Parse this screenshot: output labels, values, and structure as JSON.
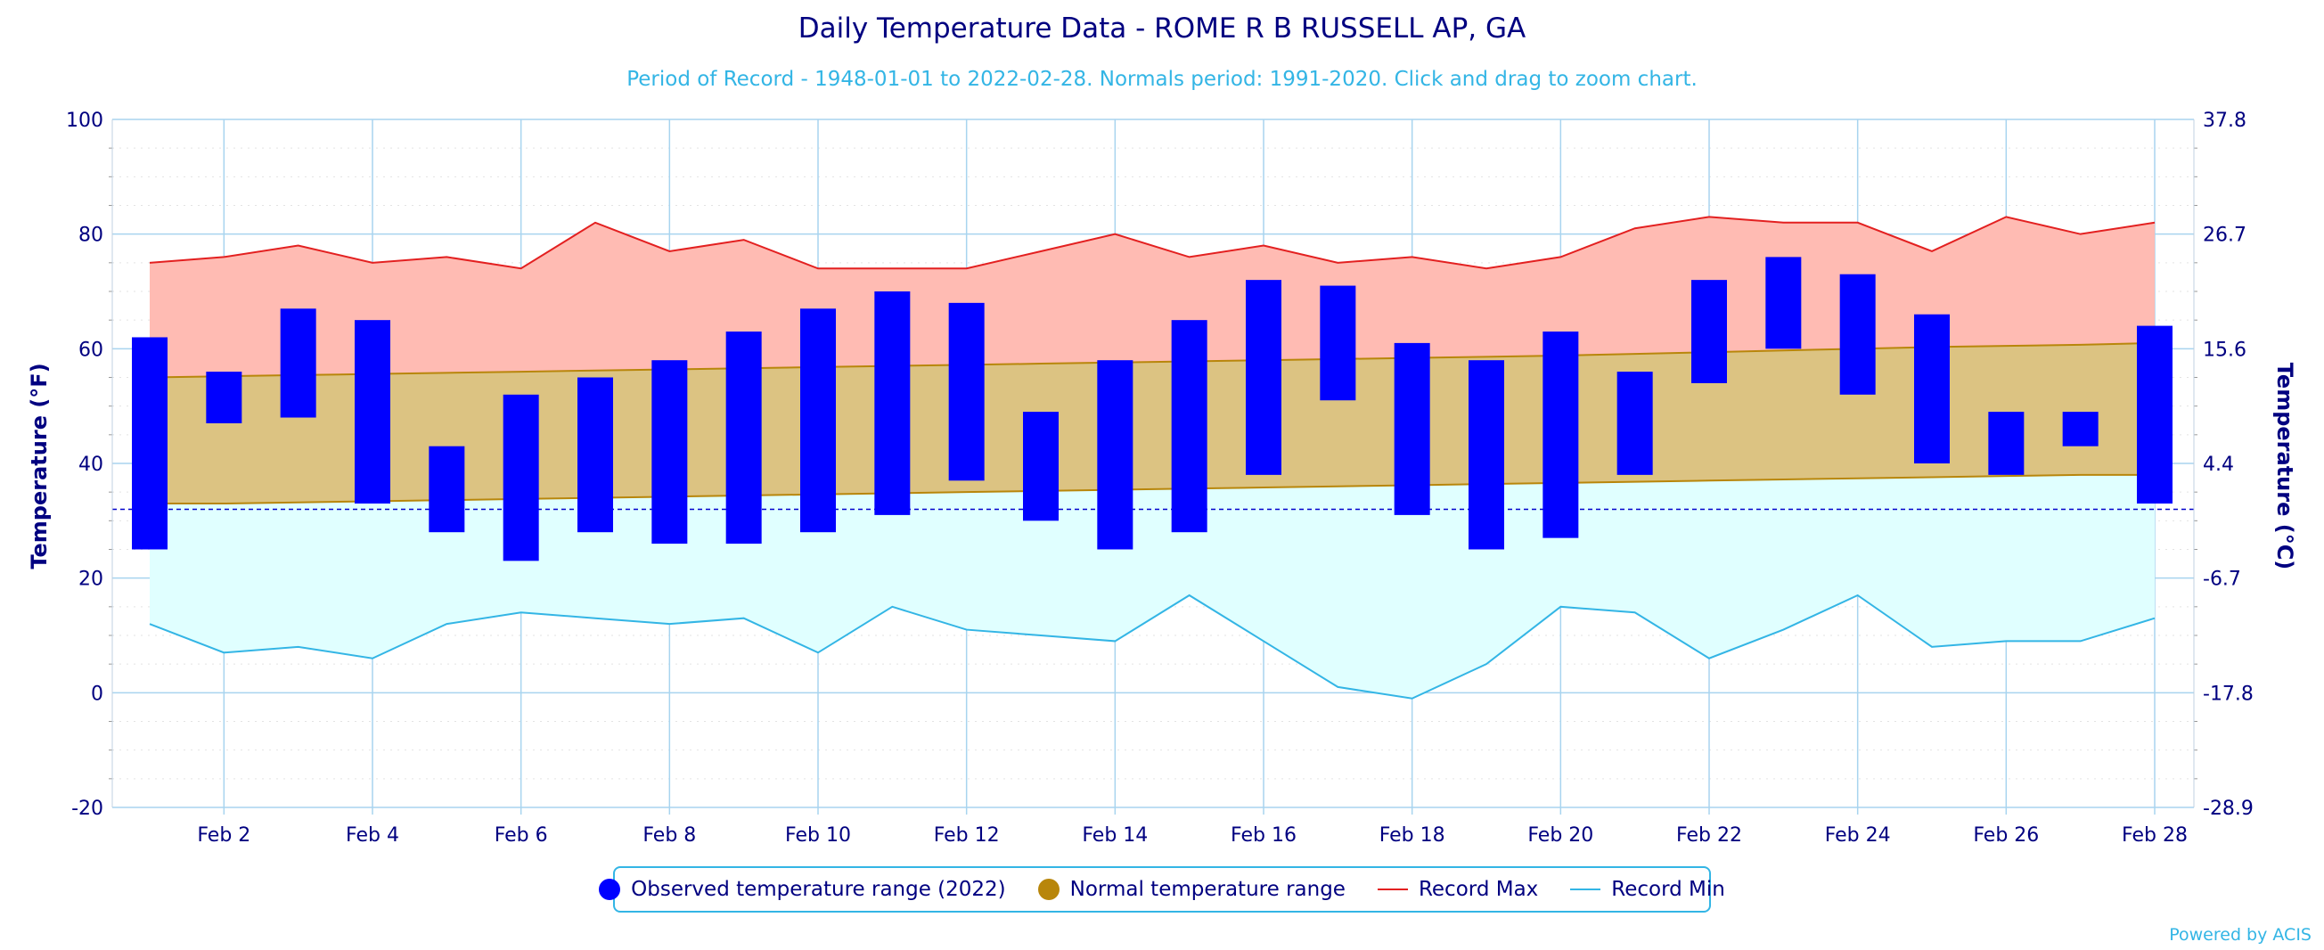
{
  "header": {
    "title": "Daily Temperature Data - ROME R B RUSSELL AP, GA",
    "subtitle": "Period of Record - 1948-01-01 to 2022-02-28. Normals period: 1991-2020. Click and drag to zoom chart."
  },
  "colors": {
    "title": "#000080",
    "subtitle": "#33b5e5",
    "observed": "#0000ff",
    "normal": "#b8860b",
    "normal_fill": "#dcc382",
    "record_max": "#e32020",
    "record_max_fill": "#ffbbb3",
    "record_min": "#33b5e5",
    "record_min_fill": "#e0ffff",
    "grid": "#a8d4ef",
    "freeze_line": "#0000cc"
  },
  "legend": {
    "observed": "Observed temperature range (2022)",
    "normal": "Normal temperature range",
    "record_max": "Record Max",
    "record_min": "Record Min"
  },
  "credit": "Powered by ACIS",
  "chart_data": {
    "type": "bar",
    "title": "Daily Temperature Data - ROME R B RUSSELL AP, GA",
    "subtitle": "Period of Record - 1948-01-01 to 2022-02-28. Normals period: 1991-2020. Click and drag to zoom chart.",
    "ylabel": "Temperature (°F)",
    "ylabel_right": "Temperature (°C)",
    "ylim": [
      -20,
      100
    ],
    "yticks": [
      -20,
      0,
      20,
      40,
      60,
      80,
      100
    ],
    "yticks_right": [
      "-28.9",
      "-17.8",
      "-6.7",
      "4.4",
      "15.6",
      "26.7",
      "37.8"
    ],
    "xlim": [
      1,
      28
    ],
    "x": [
      1,
      2,
      3,
      4,
      5,
      6,
      7,
      8,
      9,
      10,
      11,
      12,
      13,
      14,
      15,
      16,
      17,
      18,
      19,
      20,
      21,
      22,
      23,
      24,
      25,
      26,
      27,
      28
    ],
    "xticks": [
      2,
      4,
      6,
      8,
      10,
      12,
      14,
      16,
      18,
      20,
      22,
      24,
      26,
      28
    ],
    "xtick_labels": [
      "Feb 2",
      "Feb 4",
      "Feb 6",
      "Feb 8",
      "Feb 10",
      "Feb 12",
      "Feb 14",
      "Feb 16",
      "Feb 18",
      "Feb 20",
      "Feb 22",
      "Feb 24",
      "Feb 26",
      "Feb 28"
    ],
    "freezing_line": 32,
    "grid": true,
    "legend_position": "bottom",
    "series": [
      {
        "name": "Observed temperature range (2022)",
        "type": "range-bar",
        "low": [
          25,
          47,
          48,
          33,
          28,
          23,
          28,
          26,
          26,
          28,
          31,
          37,
          30,
          25,
          28,
          38,
          51,
          31,
          25,
          27,
          38,
          54,
          60,
          52,
          40,
          38,
          43,
          33
        ],
        "high": [
          62,
          56,
          67,
          65,
          43,
          52,
          55,
          58,
          63,
          67,
          70,
          68,
          49,
          58,
          65,
          72,
          71,
          61,
          58,
          63,
          56,
          72,
          76,
          73,
          66,
          49,
          49,
          64
        ]
      },
      {
        "name": "Normal temperature range",
        "type": "range-area",
        "low": [
          33,
          33,
          33.2,
          33.4,
          33.6,
          33.8,
          34,
          34.2,
          34.4,
          34.6,
          34.8,
          35,
          35.2,
          35.4,
          35.6,
          35.8,
          36,
          36.2,
          36.4,
          36.6,
          36.8,
          37,
          37.2,
          37.4,
          37.6,
          37.8,
          38,
          38
        ],
        "high": [
          55,
          55.2,
          55.4,
          55.6,
          55.8,
          56,
          56.2,
          56.4,
          56.6,
          56.8,
          57,
          57.2,
          57.4,
          57.6,
          57.8,
          58,
          58.2,
          58.4,
          58.6,
          58.8,
          59.1,
          59.4,
          59.7,
          60,
          60.3,
          60.5,
          60.7,
          61
        ]
      },
      {
        "name": "Record Max",
        "type": "line",
        "values": [
          75,
          76,
          78,
          75,
          76,
          74,
          82,
          77,
          79,
          74,
          74,
          74,
          77,
          80,
          76,
          78,
          75,
          76,
          74,
          76,
          81,
          83,
          82,
          82,
          77,
          83,
          80,
          82
        ]
      },
      {
        "name": "Record Min",
        "type": "line",
        "values": [
          12,
          7,
          8,
          6,
          12,
          14,
          13,
          12,
          13,
          7,
          15,
          11,
          10,
          9,
          17,
          9,
          1,
          -1,
          5,
          15,
          14,
          6,
          11,
          17,
          8,
          9,
          9,
          13
        ]
      }
    ]
  }
}
